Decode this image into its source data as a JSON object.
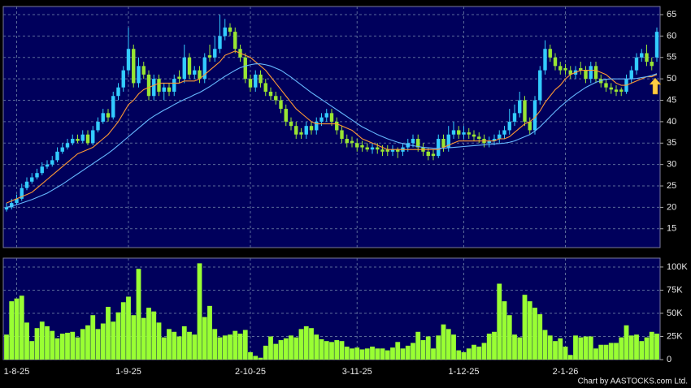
{
  "chart_data": [
    {
      "type": "candlestick",
      "open": [
        19.5,
        20,
        21,
        22,
        24.5,
        26,
        27,
        28,
        29.5,
        30,
        31,
        33,
        34,
        35,
        36,
        35.5,
        37,
        35,
        38,
        40,
        42,
        41,
        46,
        48,
        52,
        57,
        49,
        53,
        51,
        46,
        50,
        47,
        48,
        47,
        50.5,
        50,
        55,
        51,
        52,
        50,
        55.5,
        55,
        57,
        60,
        62,
        61,
        57,
        55,
        50,
        48,
        51,
        49,
        47,
        46,
        45,
        43,
        40,
        39,
        37.5,
        37,
        39,
        38,
        40,
        41,
        42,
        40,
        38,
        36,
        35.5,
        35,
        34.5,
        34,
        33.5,
        34,
        33.5,
        33.5,
        33,
        33.5,
        33,
        34,
        35,
        36,
        34,
        33,
        32.5,
        32,
        36,
        34,
        37,
        38,
        37,
        37.5,
        37,
        36.5,
        36,
        35,
        35.5,
        36,
        37,
        38,
        40,
        42,
        45,
        40,
        38,
        45,
        52,
        57,
        55,
        53,
        52.5,
        52,
        51,
        52.5,
        52,
        50,
        53,
        50,
        49,
        48,
        47.5,
        47.5,
        47,
        50,
        52,
        55,
        56,
        54,
        55
      ],
      "high": [
        21,
        22,
        23,
        25.5,
        27,
        28,
        29,
        30.5,
        31,
        32,
        34,
        35,
        36,
        37,
        37,
        38,
        38,
        39,
        41,
        43,
        43,
        47,
        49,
        53,
        62,
        58,
        55,
        54,
        52,
        51,
        51,
        49,
        49,
        51,
        52,
        58,
        56,
        53,
        53,
        56,
        58,
        60,
        65,
        64,
        63,
        62,
        58,
        56,
        51,
        52,
        52,
        50,
        48,
        47,
        46,
        44,
        41,
        40,
        38.5,
        40,
        40,
        41,
        42,
        43,
        43,
        41,
        39,
        37,
        36.5,
        36,
        35.5,
        35,
        35,
        35,
        34.5,
        34.5,
        34.5,
        34,
        35,
        36,
        37,
        37,
        35,
        34,
        33.5,
        37,
        37,
        39,
        40,
        39,
        39,
        38.5,
        38,
        37.5,
        37,
        36.5,
        37,
        38,
        39,
        43,
        44,
        47,
        46,
        41,
        46,
        53,
        59,
        58,
        56,
        54,
        53.5,
        53,
        53,
        54,
        53,
        54,
        54,
        51,
        50,
        49,
        48.5,
        48,
        51,
        53,
        56,
        57,
        58,
        55,
        62
      ],
      "low": [
        19,
        19.5,
        20.5,
        21.5,
        24,
        25.5,
        26.5,
        27.5,
        29,
        29.5,
        30.5,
        32.5,
        33.5,
        34.5,
        35,
        35,
        34.5,
        34.5,
        37.5,
        39.5,
        40,
        40.5,
        45,
        47,
        51,
        48,
        48,
        50,
        45,
        45,
        46,
        45,
        46,
        46,
        49,
        49,
        50,
        50,
        49,
        49,
        54,
        54,
        56,
        59,
        60,
        56,
        54,
        49,
        47,
        47,
        48,
        46,
        45,
        44,
        42,
        39,
        38,
        36,
        36,
        36,
        37,
        37,
        39,
        40,
        39,
        37,
        35,
        34,
        34,
        33,
        33,
        33,
        32.5,
        32.5,
        32,
        32,
        32,
        31.5,
        32,
        33,
        34,
        33,
        32,
        31,
        31,
        31.5,
        33,
        33,
        36,
        36,
        36,
        36,
        35.5,
        35,
        34,
        34,
        34.5,
        35,
        36,
        37,
        39,
        41,
        39,
        37,
        37,
        44,
        51,
        54,
        52,
        51,
        51,
        50,
        50,
        51,
        49,
        49,
        49,
        48,
        47,
        46.5,
        46,
        46,
        46.5,
        49,
        51,
        54,
        53,
        52,
        54
      ],
      "close": [
        20,
        21,
        22,
        24.5,
        26,
        27,
        28,
        29.5,
        30,
        31,
        33,
        34,
        35,
        36,
        35.5,
        37,
        35,
        38,
        40,
        42,
        41,
        46,
        48,
        52,
        57,
        49,
        53,
        51,
        46,
        50,
        47,
        48,
        47,
        50,
        50,
        55,
        51,
        52,
        50,
        55,
        55,
        57,
        60,
        62,
        61,
        57,
        55,
        50,
        48,
        51,
        49,
        47,
        46,
        45,
        43,
        40,
        39,
        37,
        37,
        39,
        38,
        40,
        41,
        42,
        40,
        38,
        36,
        35,
        35,
        34,
        34,
        33.5,
        34,
        33.5,
        33,
        33,
        33.5,
        33,
        34,
        35,
        36,
        34,
        33,
        32,
        32,
        36,
        34,
        37,
        38,
        37,
        37.5,
        37,
        36.5,
        36,
        35,
        35.5,
        36,
        37,
        38,
        40,
        42,
        45,
        40,
        38,
        45,
        52,
        57,
        55,
        53,
        52,
        52,
        51,
        52,
        52,
        50,
        53,
        50,
        49,
        48,
        47.5,
        47,
        47,
        50,
        52,
        55,
        56,
        54,
        53,
        61
      ],
      "up_color": "#33ccff",
      "down_color": "#99e633",
      "lines": [
        {
          "color": "#ff9933",
          "values": [
            21,
            21.5,
            22,
            22.5,
            23,
            23.5,
            24.5,
            25.5,
            26.5,
            27.5,
            28.5,
            29.5,
            30.5,
            31.5,
            32.5,
            33,
            33.5,
            34,
            35,
            36,
            37,
            38.5,
            40,
            42,
            44,
            45,
            46.5,
            47.5,
            48,
            48.5,
            49,
            49,
            49,
            49,
            49,
            49.5,
            49.5,
            49.5,
            50,
            51,
            52,
            53,
            54,
            55.5,
            56,
            56.5,
            56,
            55.5,
            55,
            54,
            53,
            52,
            50.5,
            49,
            47.5,
            46,
            44.5,
            43,
            42,
            41,
            40,
            39.5,
            39.5,
            39.5,
            39.5,
            39.5,
            39,
            38.5,
            38,
            37,
            36,
            35.5,
            35,
            34.5,
            34,
            33.5,
            33.5,
            33.5,
            33.5,
            33.5,
            33.5,
            33.5,
            33.5,
            33.5,
            33.5,
            33.5,
            34,
            34.5,
            35,
            35.5,
            35.5,
            35.5,
            35.5,
            35.5,
            35.5,
            35.5,
            35.5,
            36,
            36,
            36.5,
            37.5,
            38.5,
            39.5,
            40,
            41,
            42.5,
            44.5,
            46,
            47.5,
            48.5,
            50,
            51,
            51.5,
            52,
            52,
            52,
            52,
            51.5,
            51,
            50,
            49,
            48.5,
            48.5,
            49,
            49.5,
            50,
            50.5,
            50.5,
            51
          ]
        },
        {
          "color": "#66b8ff",
          "values": [
            20,
            20.3,
            20.6,
            21,
            21.4,
            21.8,
            22.3,
            22.8,
            23.3,
            24,
            24.7,
            25.4,
            26.2,
            27,
            27.8,
            28.6,
            29.4,
            30.2,
            31,
            31.8,
            32.6,
            33.5,
            34.5,
            35.5,
            36.5,
            37.5,
            38.5,
            39.5,
            40.5,
            41.3,
            42,
            42.7,
            43.3,
            44,
            44.6,
            45.2,
            45.7,
            46.3,
            46.8,
            47.5,
            48.2,
            49,
            49.8,
            50.6,
            51.3,
            52,
            52.6,
            53,
            53.3,
            53.5,
            53.5,
            53.3,
            53,
            52.5,
            52,
            51.2,
            50.4,
            49.5,
            48.6,
            47.7,
            46.8,
            46,
            45.2,
            44.4,
            43.6,
            42.8,
            42,
            41.2,
            40.4,
            39.6,
            38.8,
            38.2,
            37.6,
            37,
            36.5,
            36,
            35.6,
            35.2,
            34.9,
            34.6,
            34.4,
            34.2,
            34,
            33.9,
            33.8,
            33.8,
            33.8,
            33.9,
            34,
            34.1,
            34.2,
            34.3,
            34.4,
            34.5,
            34.6,
            34.7,
            34.8,
            34.9,
            35,
            35.2,
            35.5,
            36,
            36.5,
            37,
            37.8,
            38.8,
            40,
            41.2,
            42.4,
            43.5,
            44.5,
            45.5,
            46.4,
            47.2,
            48,
            48.6,
            49.2,
            49.6,
            49.9,
            50,
            50,
            50,
            50,
            50,
            50.1,
            50.3,
            50.5,
            50.8,
            51.2
          ]
        }
      ],
      "ylim": [
        10.6,
        66.9
      ],
      "yticks": [
        15,
        20,
        25,
        30,
        35,
        40,
        45,
        50,
        55,
        60,
        65
      ],
      "grid": true
    },
    {
      "type": "bar",
      "categories": [
        null,
        null,
        "1-8-25",
        null,
        null,
        null,
        null,
        null,
        null,
        null,
        null,
        null,
        null,
        null,
        null,
        null,
        null,
        null,
        null,
        null,
        null,
        null,
        null,
        null,
        "1-9-25",
        null,
        null,
        null,
        null,
        null,
        null,
        null,
        null,
        null,
        null,
        null,
        null,
        null,
        null,
        null,
        null,
        null,
        null,
        null,
        null,
        null,
        null,
        null,
        "2-10-25",
        null,
        null,
        null,
        null,
        null,
        null,
        null,
        null,
        null,
        null,
        null,
        null,
        null,
        null,
        null,
        null,
        null,
        null,
        null,
        null,
        "3-11-25",
        null,
        null,
        null,
        null,
        null,
        null,
        null,
        null,
        null,
        null,
        null,
        null,
        null,
        null,
        null,
        null,
        null,
        null,
        null,
        null,
        "1-12-25",
        null,
        null,
        null,
        null,
        null,
        null,
        null,
        null,
        null,
        null,
        null,
        null,
        null,
        null,
        null,
        null,
        null,
        null,
        null,
        "2-1-26",
        null,
        null,
        null,
        null,
        null,
        null,
        null,
        null,
        null,
        null,
        null,
        null,
        null,
        null,
        null,
        null,
        null,
        null
      ],
      "values": [
        27000,
        63000,
        66000,
        69000,
        40000,
        20000,
        34000,
        41000,
        36000,
        31000,
        23000,
        28000,
        29000,
        30000,
        24000,
        33000,
        37000,
        48000,
        33000,
        39000,
        57000,
        41000,
        51000,
        62000,
        68000,
        48000,
        98000,
        45000,
        56000,
        52000,
        40000,
        24000,
        33000,
        30000,
        25000,
        36000,
        30000,
        27000,
        104000,
        46000,
        58000,
        33000,
        24000,
        26000,
        27000,
        31000,
        28000,
        32000,
        8000,
        4000,
        2000,
        15000,
        25000,
        17000,
        21000,
        23000,
        26000,
        24000,
        33000,
        36000,
        34000,
        27000,
        22000,
        20000,
        19000,
        21000,
        20000,
        14000,
        12000,
        13000,
        11000,
        12000,
        14000,
        12000,
        12000,
        10000,
        13000,
        19000,
        12000,
        15000,
        18000,
        30000,
        21000,
        25000,
        12000,
        26000,
        38000,
        33000,
        27000,
        10000,
        8000,
        12000,
        16000,
        14000,
        18000,
        28000,
        30000,
        82000,
        63000,
        48000,
        27000,
        24000,
        70000,
        63000,
        56000,
        49000,
        32000,
        26000,
        20000,
        23000,
        14000,
        5000,
        26000,
        24000,
        25000,
        25000,
        12000,
        16000,
        16000,
        18000,
        18000,
        24000,
        37000,
        26000,
        27000,
        20000,
        24000,
        30000,
        28000
      ],
      "color": "#99ff33",
      "ylim": [
        0,
        109600
      ],
      "yticks": [
        0,
        {
          "value": 25000,
          "label": "25K"
        },
        {
          "value": 50000,
          "label": "50K"
        },
        {
          "value": 75000,
          "label": "75K"
        },
        {
          "value": 100000,
          "label": "100K"
        }
      ],
      "grid": true
    }
  ],
  "credit": "Chart by AASTOCKS.com Ltd."
}
